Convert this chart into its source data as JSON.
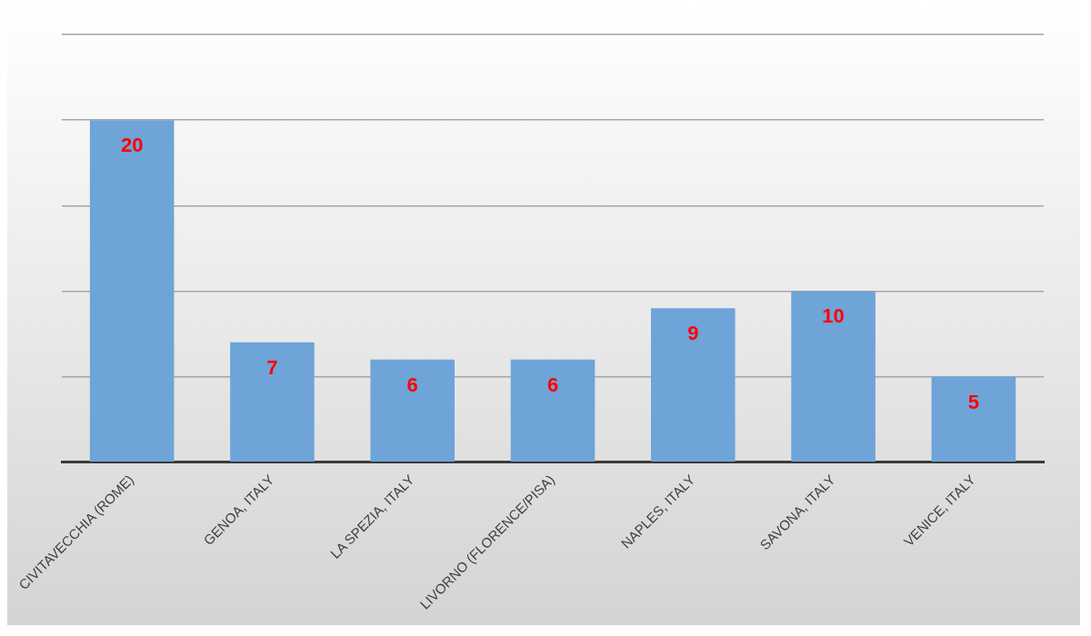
{
  "chart_data": {
    "type": "bar",
    "categories": [
      "CIVITAVECCHIA (ROME)",
      "GENOA, ITALY",
      "LA SPEZIA, ITALY",
      "LIVORNO (FLORENCE/PISA)",
      "NAPLES, ITALY",
      "SAVONA, ITALY",
      "VENICE, ITALY"
    ],
    "values": [
      20,
      7,
      6,
      6,
      9,
      10,
      5
    ],
    "color": "#6ea4d8",
    "ylim": [
      0,
      25
    ],
    "yticks": [
      {
        "value": 0,
        "label": null
      },
      {
        "value": 5,
        "label": null
      },
      {
        "value": 10,
        "label": null
      },
      {
        "value": 15,
        "label": null
      },
      {
        "value": 20,
        "label": null
      },
      {
        "value": 25,
        "label": null
      }
    ],
    "tick_labels": "x",
    "grid": "y",
    "legend": false,
    "data_labels": true
  }
}
